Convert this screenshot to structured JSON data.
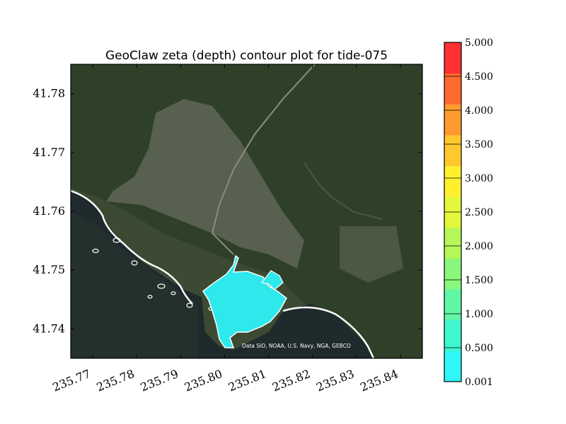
{
  "chart_data": {
    "type": "heatmap",
    "title": "GeoClaw zeta (depth) contour plot for tide-075",
    "xlabel": "",
    "ylabel": "",
    "xlim": [
      235.765,
      235.845
    ],
    "ylim": [
      41.735,
      41.785
    ],
    "x_ticks": [
      "235.77",
      "235.78",
      "235.79",
      "235.80",
      "235.81",
      "235.82",
      "235.83",
      "235.84"
    ],
    "x_tick_values": [
      235.77,
      235.78,
      235.79,
      235.8,
      235.81,
      235.82,
      235.83,
      235.84
    ],
    "y_ticks": [
      "41.74",
      "41.75",
      "41.76",
      "41.77",
      "41.78"
    ],
    "y_tick_values": [
      41.74,
      41.75,
      41.76,
      41.77,
      41.78
    ],
    "background": "satellite imagery",
    "credit": "Data SIO, NOAA, U.S. Navy, NGA, GEBCO",
    "colorbar": {
      "levels": [
        0.001,
        0.5,
        1.0,
        1.5,
        2.0,
        2.5,
        3.0,
        3.5,
        4.0,
        4.5,
        5.0
      ],
      "labels": [
        "0.001",
        "0.500",
        "1.000",
        "1.500",
        "2.000",
        "2.500",
        "3.000",
        "3.500",
        "4.000",
        "4.500",
        "5.000"
      ],
      "colors": [
        "#2ff7f7",
        "#3ff7cf",
        "#5ff7a5",
        "#88f77b",
        "#b5f757",
        "#e4f73a",
        "#fff02e",
        "#ffc82e",
        "#ff9b2e",
        "#ff6a2e",
        "#ff3030"
      ]
    },
    "filled_region": {
      "description_level_range": [
        0.001,
        0.5
      ],
      "color": "#2ee8ec"
    }
  }
}
